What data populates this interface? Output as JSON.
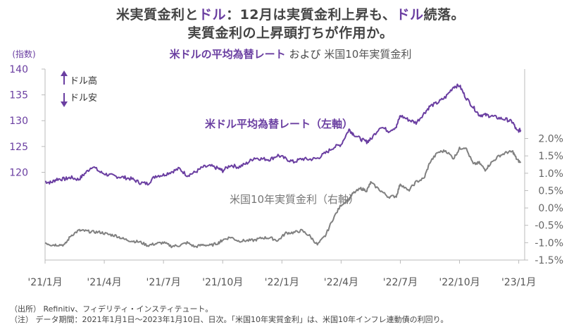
{
  "headline": {
    "line1_parts": [
      "米実質金利と",
      "ドル",
      "：12月は実質金利上昇も、",
      "ドル",
      "続落。"
    ],
    "line2": "実質金利の上昇頭打ちが作用か。"
  },
  "subtitle": {
    "left": "米ドルの平均為替レート",
    "mid": "および",
    "right": "米国10年実質金利"
  },
  "footer": {
    "source": "（出所） Refinitiv、フィデリティ・インスティテュート。",
    "note": "（注） データ期間：2021年1月1日～2023年1月10日、日次。「米国10年実質金利」は、米国10年インフレ連動債の利回り。"
  },
  "colors": {
    "usd": "#6a3ea1",
    "real_rate": "#808080",
    "title_accent": "#6a3ea1"
  },
  "legend_arrows": {
    "up": "ドル高",
    "down": "ドル安"
  },
  "chart_data": {
    "type": "line",
    "y_left_unit_label": "(指数)",
    "y_left": {
      "ticks": [
        "140",
        "135",
        "130",
        "125",
        "120"
      ],
      "range": [
        103,
        140
      ]
    },
    "y_right": {
      "ticks": [
        "2.0%",
        "1.5%",
        "1.0%",
        "0.5%",
        "0.0%",
        "-0.5%",
        "-1.0%",
        "-1.5%"
      ],
      "range": [
        -1.5,
        4.0
      ]
    },
    "x_ticks": [
      "'21/1月",
      "'21/4月",
      "'21/7月",
      "'21/10月",
      "'22/1月",
      "'22/4月",
      "'22/7月",
      "'22/10月",
      "'23/1月"
    ],
    "x_range": [
      0,
      24.3
    ],
    "series": [
      {
        "name": "米ドル平均為替レート（左軸）",
        "axis": "left",
        "x": [
          0,
          0.3,
          0.6,
          1.0,
          1.3,
          1.7,
          2.0,
          2.4,
          2.8,
          3.2,
          3.6,
          4.0,
          4.4,
          4.8,
          5.2,
          5.6,
          6.0,
          6.4,
          6.8,
          7.2,
          7.6,
          8.0,
          8.4,
          8.8,
          9.0,
          9.4,
          9.8,
          10.2,
          10.6,
          11.0,
          11.4,
          11.8,
          12.2,
          12.6,
          13.0,
          13.4,
          13.8,
          14.2,
          14.6,
          15.0,
          15.4,
          15.6,
          16.0,
          16.3,
          16.5,
          17.0,
          17.4,
          17.8,
          18.0,
          18.4,
          18.8,
          19.2,
          19.5,
          19.9,
          20.3,
          20.7,
          21.0,
          21.3,
          21.7,
          22.0,
          22.3,
          22.6,
          23.0,
          23.4,
          23.7,
          23.9,
          24.1
        ],
        "values": [
          118.2,
          118.0,
          118.7,
          118.7,
          119.0,
          118.6,
          119.7,
          121.2,
          120.0,
          119.5,
          119.2,
          119.0,
          118.7,
          118.0,
          117.8,
          119.3,
          119.5,
          120.1,
          120.7,
          119.4,
          120.0,
          121.0,
          121.2,
          120.7,
          120.3,
          121.4,
          121.0,
          121.7,
          122.8,
          122.6,
          122.5,
          123.3,
          122.6,
          122.0,
          122.6,
          122.5,
          122.7,
          123.7,
          124.8,
          125.4,
          128.3,
          127.5,
          126.4,
          125.9,
          126.4,
          128.9,
          128.0,
          128.8,
          131.0,
          130.2,
          129.6,
          131.4,
          132.8,
          133.5,
          134.6,
          136.6,
          136.8,
          134.6,
          132.6,
          131.1,
          131.1,
          130.9,
          130.5,
          130.2,
          129.7,
          128.0,
          128.2
        ]
      },
      {
        "name": "米国10年実質金利（右軸）",
        "axis": "right",
        "x": [
          0,
          0.3,
          0.6,
          1.0,
          1.3,
          1.7,
          2.0,
          2.4,
          2.8,
          3.2,
          3.6,
          4.0,
          4.4,
          4.8,
          5.2,
          5.6,
          6.0,
          6.4,
          6.8,
          7.2,
          7.6,
          8.0,
          8.4,
          8.8,
          9.0,
          9.4,
          9.8,
          10.2,
          10.6,
          11.0,
          11.4,
          11.8,
          12.2,
          12.6,
          13.0,
          13.4,
          13.8,
          14.2,
          14.6,
          15.0,
          15.4,
          15.6,
          16.0,
          16.3,
          16.5,
          17.0,
          17.4,
          17.8,
          18.0,
          18.4,
          18.8,
          19.2,
          19.5,
          19.9,
          20.3,
          20.7,
          21.0,
          21.3,
          21.7,
          22.0,
          22.3,
          22.6,
          23.0,
          23.4,
          23.7,
          23.9,
          24.1
        ],
        "values": [
          -1.0,
          -1.06,
          -1.06,
          -1.06,
          -0.8,
          -0.65,
          -0.66,
          -0.69,
          -0.7,
          -0.76,
          -0.8,
          -0.9,
          -0.95,
          -0.98,
          -1.08,
          -1.03,
          -1.0,
          -1.1,
          -1.08,
          -1.0,
          -1.12,
          -1.06,
          -1.08,
          -1.0,
          -0.92,
          -0.84,
          -0.95,
          -0.94,
          -0.93,
          -0.86,
          -0.86,
          -0.94,
          -0.72,
          -0.71,
          -0.65,
          -0.8,
          -1.06,
          -0.8,
          -0.3,
          0.09,
          0.25,
          0.42,
          0.56,
          0.5,
          0.73,
          0.5,
          0.32,
          0.34,
          0.7,
          0.49,
          0.75,
          0.85,
          1.32,
          1.6,
          1.65,
          1.43,
          1.71,
          1.75,
          1.26,
          1.3,
          1.1,
          1.3,
          1.5,
          1.6,
          1.62,
          1.4,
          1.3
        ]
      }
    ],
    "annotations": {
      "usd_label": "米ドル平均為替レート（左軸）",
      "real_label": "米国10年実質金利（右軸）"
    },
    "grid": false
  }
}
